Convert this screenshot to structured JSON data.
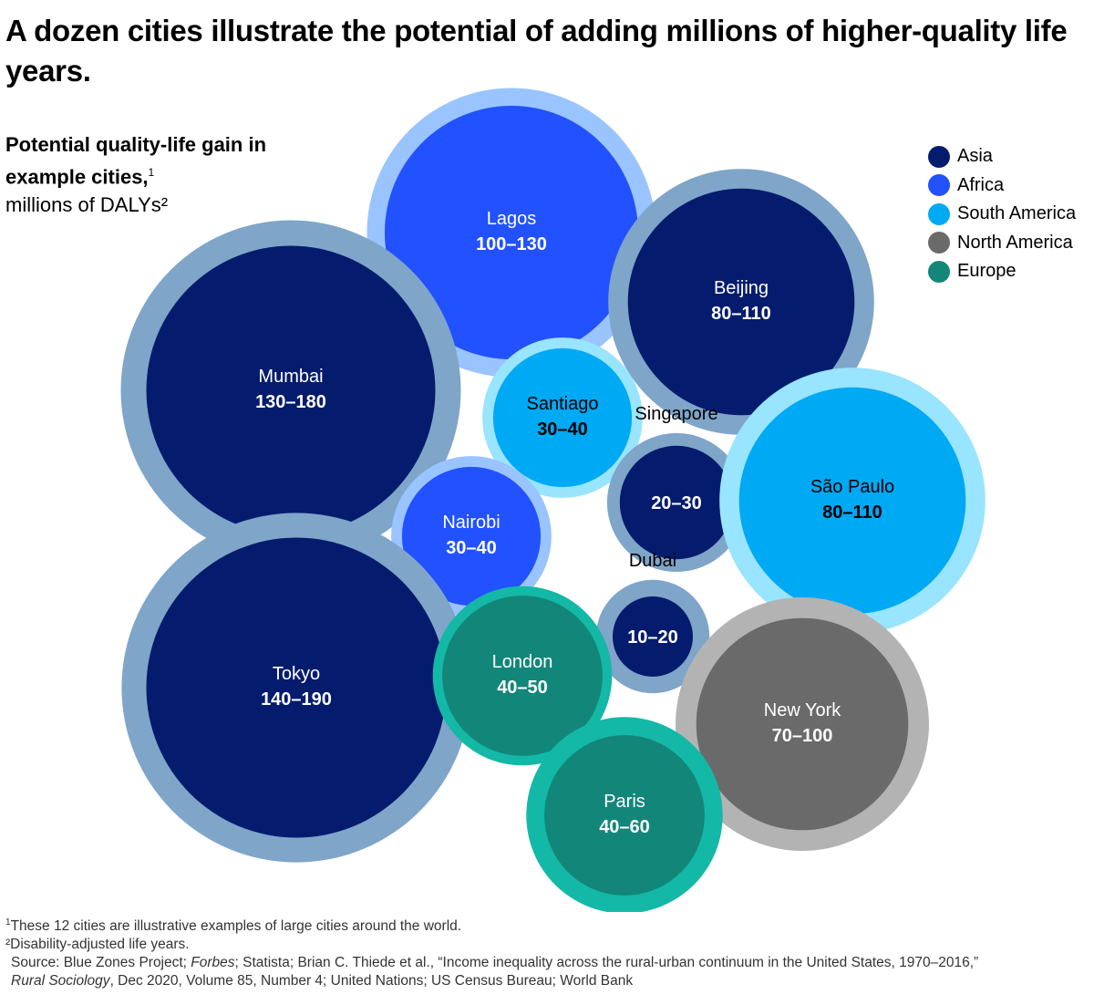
{
  "title": "A dozen cities illustrate the potential of adding millions of higher-quality life years.",
  "subtitle": {
    "bold": "Potential quality-life gain in example cities,",
    "bold_sup": "1",
    "normal": "millions of DALYs²"
  },
  "legend": [
    {
      "label": "Asia",
      "color": "#051c6e"
    },
    {
      "label": "Africa",
      "color": "#2251ff"
    },
    {
      "label": "South America",
      "color": "#00a9f4"
    },
    {
      "label": "North America",
      "color": "#6a6a6a"
    },
    {
      "label": "Europe",
      "color": "#13867a"
    }
  ],
  "chart_data": {
    "type": "bubble",
    "unit": "millions of DALYs",
    "series": [
      {
        "city": "Lagos",
        "range": "100–130",
        "low": 100,
        "high": 130,
        "region": "Africa",
        "inner": "#2251ff",
        "ring": "#99c4ff",
        "label_color": "#ffffff",
        "label_outside": false
      },
      {
        "city": "Beijing",
        "range": "80–110",
        "low": 80,
        "high": 110,
        "region": "Asia",
        "inner": "#051c6e",
        "ring": "#7fa5c9",
        "label_color": "#ffffff",
        "label_outside": false
      },
      {
        "city": "Mumbai",
        "range": "130–180",
        "low": 130,
        "high": 180,
        "region": "Asia",
        "inner": "#051c6e",
        "ring": "#7fa5c9",
        "label_color": "#ffffff",
        "label_outside": false
      },
      {
        "city": "Santiago",
        "range": "30–40",
        "low": 30,
        "high": 40,
        "region": "South America",
        "inner": "#00a9f4",
        "ring": "#99e4ff",
        "label_color": "#000000",
        "label_outside": false
      },
      {
        "city": "Singapore",
        "range": "20–30",
        "low": 20,
        "high": 30,
        "region": "Asia",
        "inner": "#051c6e",
        "ring": "#7fa5c9",
        "label_color": "#ffffff",
        "label_outside": true
      },
      {
        "city": "São Paulo",
        "range": "80–110",
        "low": 80,
        "high": 110,
        "region": "South America",
        "inner": "#00a9f4",
        "ring": "#99e4ff",
        "label_color": "#000000",
        "label_outside": false
      },
      {
        "city": "Nairobi",
        "range": "30–40",
        "low": 30,
        "high": 40,
        "region": "Africa",
        "inner": "#2251ff",
        "ring": "#99c4ff",
        "label_color": "#ffffff",
        "label_outside": false
      },
      {
        "city": "Dubai",
        "range": "10–20",
        "low": 10,
        "high": 20,
        "region": "Asia",
        "inner": "#051c6e",
        "ring": "#7fa5c9",
        "label_color": "#ffffff",
        "label_outside": true
      },
      {
        "city": "Tokyo",
        "range": "140–190",
        "low": 140,
        "high": 190,
        "region": "Asia",
        "inner": "#051c6e",
        "ring": "#7fa5c9",
        "label_color": "#ffffff",
        "label_outside": false
      },
      {
        "city": "London",
        "range": "40–50",
        "low": 40,
        "high": 50,
        "region": "Europe",
        "inner": "#13867a",
        "ring": "#14b8a6",
        "label_color": "#ffffff",
        "label_outside": false
      },
      {
        "city": "New York",
        "range": "70–100",
        "low": 70,
        "high": 100,
        "region": "North America",
        "inner": "#6a6a6a",
        "ring": "#b3b3b3",
        "label_color": "#ffffff",
        "label_outside": false
      },
      {
        "city": "Paris",
        "range": "40–60",
        "low": 40,
        "high": 60,
        "region": "Europe",
        "inner": "#13867a",
        "ring": "#14b8a6",
        "label_color": "#ffffff",
        "label_outside": false
      }
    ]
  },
  "footnotes": {
    "note1_mark": "1",
    "note1": "These 12 cities are illustrative examples of large cities around the world.",
    "note2": "²Disability-adjusted life years.",
    "source_a": "Source: Blue Zones Project; ",
    "source_forbes": "Forbes",
    "source_b": "; Statista; Brian C. Thiede et al., “Income inequality across the rural-urban continuum in the United States, 1970–2016,”",
    "source_journal": "Rural Sociology",
    "source_c": ", Dec 2020, Volume 85, Number 4; United Nations; US Census Bureau; World Bank"
  }
}
